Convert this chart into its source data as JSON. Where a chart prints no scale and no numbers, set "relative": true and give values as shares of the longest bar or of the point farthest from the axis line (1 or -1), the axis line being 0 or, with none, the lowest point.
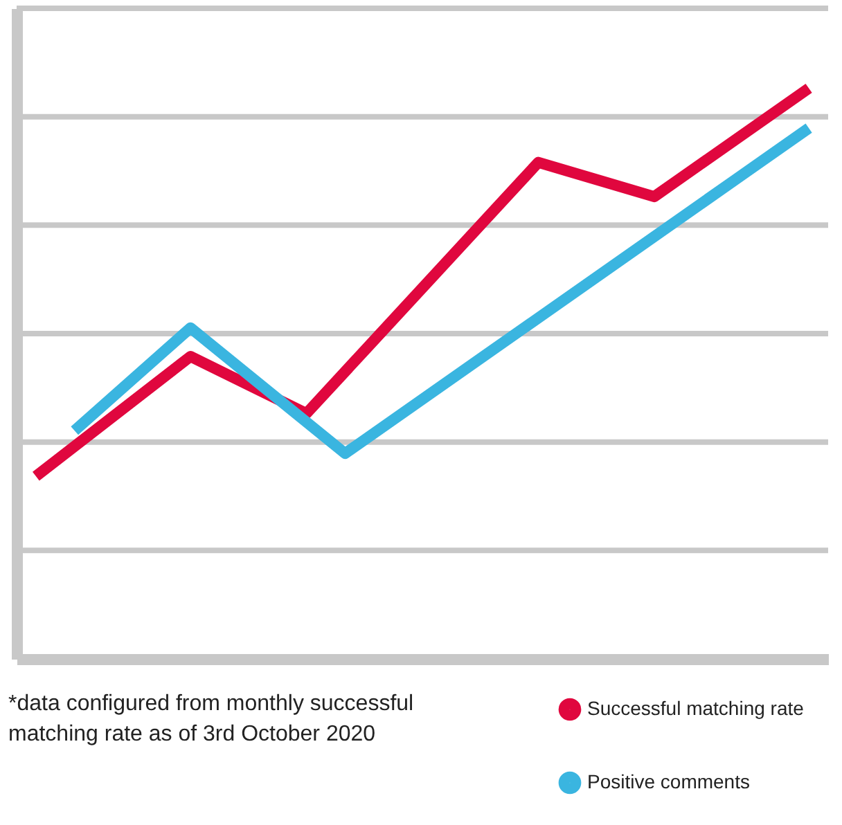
{
  "chart_data": {
    "type": "line",
    "relative": true,
    "tick_labels": false,
    "grid": "y",
    "legend": "bottom right",
    "marker": "none",
    "line_style": "solid",
    "categories": [
      null,
      null,
      null,
      null,
      null,
      null,
      null,
      null,
      null,
      null,
      null,
      null,
      null,
      null,
      null,
      null,
      null,
      null,
      null,
      null,
      null
    ],
    "series": [
      {
        "name": "Successful matching rate",
        "color": "#e0073e",
        "values": [
          0.32,
          null,
          null,
          null,
          0.53,
          null,
          null,
          0.43,
          null,
          null,
          null,
          null,
          null,
          0.87,
          null,
          null,
          0.81,
          null,
          null,
          null,
          1
        ]
      },
      {
        "name": "Positive comments",
        "color": "#3ab5e0",
        "values": [
          null,
          0.4,
          null,
          null,
          0.58,
          null,
          null,
          null,
          0.36,
          null,
          null,
          null,
          null,
          null,
          null,
          null,
          null,
          null,
          null,
          null,
          0.93
        ]
      }
    ],
    "annotations": [
      "*data configured from monthly successful matching rate as of 3rd October 2020"
    ]
  }
}
